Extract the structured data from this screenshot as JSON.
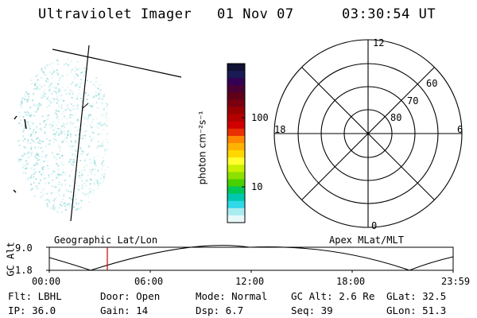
{
  "header": {
    "title": "Ultraviolet Imager",
    "date": "01 Nov 07",
    "time": "03:30:54 UT"
  },
  "colorbar": {
    "unit_label": "photon cm⁻²s⁻¹",
    "tick_labels": [
      "100",
      "10"
    ],
    "colors": [
      "#111133",
      "#1a1a55",
      "#330055",
      "#4b0033",
      "#600018",
      "#7a0010",
      "#990000",
      "#b50000",
      "#d00000",
      "#e83000",
      "#ff8800",
      "#ffb300",
      "#ffd800",
      "#ffff30",
      "#c8f000",
      "#8ee000",
      "#48d000",
      "#00c858",
      "#00c8b0",
      "#30d8e8",
      "#a8ecf0",
      "#e8f8f8"
    ]
  },
  "polar": {
    "mlt_labels": {
      "top": "12",
      "left": "18",
      "right": "6",
      "bottom": "0"
    },
    "mlat_labels": [
      "60",
      "70",
      "80"
    ]
  },
  "timeline": {
    "y_axis_label": "GC Alt",
    "y_ticks": [
      "9.0",
      "1.8"
    ],
    "left_title": "Geographic Lat/Lon",
    "right_title": "Apex MLat/MLT",
    "x_ticks": [
      "00:00",
      "06:00",
      "12:00",
      "18:00",
      "23:59"
    ],
    "marker_color": "#cc0000"
  },
  "info": {
    "flt": "Flt: LBHL",
    "ip": "IP: 36.0",
    "door": "Door: Open",
    "gain": "Gain: 14",
    "mode": "Mode: Normal",
    "dsp": "Dsp:     6.7",
    "gc_alt": "GC Alt: 2.6 Re",
    "seq": "Seq: 39",
    "glat": "GLat:  32.5",
    "glon": "GLon:  51.3"
  }
}
